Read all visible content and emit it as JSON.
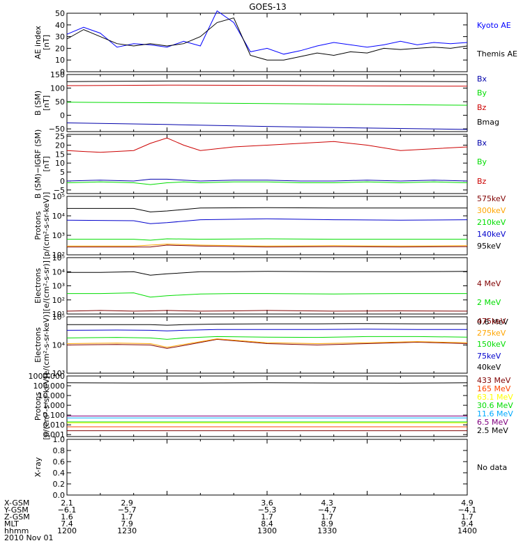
{
  "title": "GOES-13",
  "chart_data": [
    {
      "type": "line",
      "ylabel": "AE index [nT]",
      "ylim": [
        0,
        50
      ],
      "ticks": [
        0,
        10,
        20,
        30,
        40,
        50
      ],
      "tick_labels": [
        "0",
        "10",
        "20",
        "30",
        "40",
        "50"
      ],
      "x": [
        1200,
        1205,
        1210,
        1215,
        1220,
        1225,
        1230,
        1235,
        1240,
        1245,
        1250,
        1255,
        1300,
        1305,
        1310,
        1315,
        1320,
        1325,
        1330,
        1335,
        1340,
        1345,
        1350,
        1355,
        1400
      ],
      "series": [
        {
          "name": "Kyoto AE",
          "color": "#0000ff",
          "values": [
            32,
            38,
            33,
            21,
            24,
            23,
            21,
            26,
            22,
            52,
            42,
            17,
            20,
            15,
            18,
            22,
            25,
            23,
            21,
            23,
            26,
            23,
            25,
            24,
            25
          ]
        },
        {
          "name": "Themis AE",
          "color": "#000000",
          "values": [
            28,
            36,
            30,
            24,
            22,
            24,
            22,
            24,
            30,
            42,
            46,
            14,
            10,
            10,
            13,
            16,
            14,
            17,
            16,
            20,
            19,
            20,
            21,
            20,
            22
          ]
        }
      ]
    },
    {
      "type": "line",
      "ylabel": "B (SM) [nT]",
      "ylim": [
        -60,
        150
      ],
      "ticks": [
        -50,
        0,
        50,
        100,
        150
      ],
      "tick_labels": [
        "−50",
        "0",
        "50",
        "100",
        "150"
      ],
      "x": [
        1200,
        1230,
        1300,
        1330,
        1400
      ],
      "series": [
        {
          "name": "Bx",
          "color": "#0000aa",
          "values": [
            -28,
            -34,
            -41,
            -47,
            -52
          ]
        },
        {
          "name": "By",
          "color": "#00dd00",
          "values": [
            48,
            46,
            43,
            40,
            37
          ]
        },
        {
          "name": "Bz",
          "color": "#cc0000",
          "values": [
            109,
            111,
            110,
            108,
            107
          ]
        },
        {
          "name": "Bmag",
          "color": "#000000",
          "values": [
            124,
            126,
            126,
            125,
            124
          ]
        }
      ]
    },
    {
      "type": "line",
      "ylabel": "B (SM)−IGRF (SM) [nT]",
      "ylim": [
        -7,
        26
      ],
      "ticks": [
        -5,
        0,
        5,
        10,
        15,
        20,
        25
      ],
      "tick_labels": [
        "−5",
        "0",
        "5",
        "10",
        "15",
        "20",
        "25"
      ],
      "x": [
        1200,
        1210,
        1220,
        1225,
        1230,
        1235,
        1240,
        1250,
        1300,
        1310,
        1320,
        1330,
        1340,
        1350,
        1400
      ],
      "series": [
        {
          "name": "Bx",
          "color": "#0000aa",
          "values": [
            0,
            0.5,
            0,
            1,
            1,
            0.5,
            0,
            0.5,
            0.5,
            0,
            0,
            0.5,
            0,
            0.5,
            0
          ]
        },
        {
          "name": "By",
          "color": "#00dd00",
          "values": [
            -1,
            -0.5,
            -1,
            -2,
            -1,
            -0.5,
            -1,
            -0.5,
            -0.5,
            -1,
            -1,
            -0.5,
            -1,
            -0.5,
            -1
          ]
        },
        {
          "name": "Bz",
          "color": "#cc0000",
          "values": [
            17,
            16,
            17,
            21,
            24,
            20,
            17,
            19,
            20,
            21,
            22,
            20,
            17,
            18,
            19
          ]
        }
      ]
    },
    {
      "type": "line",
      "ylabel": "Protons [p/(cm²-s-sr-keV)]",
      "yscale": "log",
      "ylim_log10": [
        2,
        5
      ],
      "ticks": [
        2,
        3,
        4,
        5
      ],
      "tick_labels": [
        "10²",
        "10³",
        "10⁴",
        "10⁵"
      ],
      "x": [
        1200,
        1220,
        1225,
        1230,
        1240,
        1300,
        1320,
        1340,
        1400
      ],
      "series": [
        {
          "name": "575keV",
          "color": "#800000",
          "values": [
            2.4,
            2.4,
            2.4,
            2.5,
            2.45,
            2.4,
            2.42,
            2.4,
            2.42
          ]
        },
        {
          "name": "300keV",
          "color": "#ffa500",
          "values": [
            2.45,
            2.45,
            2.5,
            2.55,
            2.5,
            2.45,
            2.47,
            2.45,
            2.47
          ]
        },
        {
          "name": "210keV",
          "color": "#00dd00",
          "values": [
            2.8,
            2.8,
            2.75,
            2.82,
            2.8,
            2.82,
            2.8,
            2.8,
            2.8
          ]
        },
        {
          "name": "140keV",
          "color": "#0000cc",
          "values": [
            3.78,
            3.75,
            3.6,
            3.65,
            3.8,
            3.85,
            3.8,
            3.78,
            3.8
          ]
        },
        {
          "name": "95keV",
          "color": "#000000",
          "values": [
            4.38,
            4.38,
            4.2,
            4.25,
            4.4,
            4.42,
            4.4,
            4.4,
            4.4
          ]
        }
      ]
    },
    {
      "type": "line",
      "ylabel": "Electrons [e/(cm²-s-sr)]",
      "yscale": "log",
      "ylim_log10": [
        1,
        5
      ],
      "ticks": [
        1,
        2,
        3,
        4,
        5
      ],
      "tick_labels": [
        "10¹",
        "10²",
        "10³",
        "10⁴",
        "10⁵"
      ],
      "x": [
        1200,
        1210,
        1220,
        1225,
        1230,
        1240,
        1250,
        1300,
        1320,
        1340,
        1400
      ],
      "series": [
        {
          "name": "4 MeV",
          "color": "#800000",
          "values": [
            1.2,
            1.25,
            1.2,
            1.22,
            1.25,
            1.2,
            1.22,
            1.25,
            1.2,
            1.22,
            1.2
          ]
        },
        {
          "name": "2 MeV",
          "color": "#00dd00",
          "values": [
            2.45,
            2.45,
            2.5,
            2.2,
            2.3,
            2.42,
            2.45,
            2.45,
            2.42,
            2.45,
            2.45
          ]
        },
        {
          "name": "0.6 MeV",
          "color": "#000000",
          "values": [
            3.95,
            3.95,
            4.0,
            3.75,
            3.85,
            4.0,
            4.0,
            4.02,
            4.0,
            4.0,
            4.02
          ]
        }
      ]
    },
    {
      "type": "line",
      "ylabel": "Electrons [e/(cm²-s-sr-keV)]",
      "yscale": "log",
      "ylim_log10": [
        3,
        5
      ],
      "ticks": [
        3,
        4,
        5
      ],
      "tick_labels": [
        "10³",
        "10⁴",
        "10⁵"
      ],
      "x": [
        1200,
        1215,
        1225,
        1230,
        1235,
        1245,
        1300,
        1315,
        1330,
        1345,
        1400
      ],
      "series": [
        {
          "name": "475keV",
          "color": "#800000",
          "values": [
            4.0,
            4.02,
            4.0,
            3.88,
            3.98,
            4.2,
            4.05,
            4.0,
            4.05,
            4.1,
            4.05
          ]
        },
        {
          "name": "275keV",
          "color": "#ffa500",
          "values": [
            4.05,
            4.07,
            4.05,
            3.92,
            4.02,
            4.22,
            4.08,
            4.05,
            4.08,
            4.12,
            4.08
          ]
        },
        {
          "name": "150keV",
          "color": "#00dd00",
          "values": [
            4.25,
            4.27,
            4.25,
            4.2,
            4.25,
            4.3,
            4.28,
            4.27,
            4.3,
            4.3,
            4.28
          ]
        },
        {
          "name": "75keV",
          "color": "#0000cc",
          "values": [
            4.52,
            4.53,
            4.52,
            4.5,
            4.52,
            4.55,
            4.55,
            4.55,
            4.56,
            4.55,
            4.55
          ]
        },
        {
          "name": "40keV",
          "color": "#000000",
          "values": [
            4.72,
            4.72,
            4.72,
            4.7,
            4.72,
            4.74,
            4.75,
            4.75,
            4.76,
            4.75,
            4.75
          ]
        }
      ]
    },
    {
      "type": "line",
      "ylabel": "Protons [p/(cm²-s-sr-keV)]",
      "yscale": "log",
      "ylim_log10": [
        -3.2,
        3
      ],
      "ticks": [
        -3,
        -2,
        -1,
        0,
        1,
        2,
        3
      ],
      "tick_labels": [
        "0.001",
        "0.010",
        "0.100",
        "1.000",
        "10.000",
        "100.000",
        "1000.000"
      ],
      "x": [
        1200,
        1220,
        1240,
        1300,
        1320,
        1340,
        1400
      ],
      "series": [
        {
          "name": "433 MeV",
          "color": "#800000",
          "values": [
            -2.6,
            -2.6,
            -2.6,
            -2.6,
            -2.6,
            -2.6,
            -2.6
          ]
        },
        {
          "name": "165 MeV",
          "color": "#ff4500",
          "values": [
            -2.2,
            -2.2,
            -2.2,
            -2.2,
            -2.2,
            -2.2,
            -2.2
          ]
        },
        {
          "name": "63.1 MeV",
          "color": "#ffff00",
          "values": [
            -1.8,
            -1.8,
            -1.8,
            -1.8,
            -1.8,
            -1.8,
            -1.8
          ]
        },
        {
          "name": "30.6 MeV",
          "color": "#00dd00",
          "values": [
            -1.7,
            -1.7,
            -1.7,
            -1.7,
            -1.7,
            -1.7,
            -1.7
          ]
        },
        {
          "name": "11.6 MeV",
          "color": "#00aaff",
          "values": [
            -1.3,
            -1.3,
            -1.3,
            -1.3,
            -1.3,
            -1.3,
            -1.3
          ]
        },
        {
          "name": "6.5 MeV",
          "color": "#800080",
          "values": [
            -1.1,
            -1.1,
            -1.1,
            -1.1,
            -1.1,
            -1.1,
            -1.1
          ]
        },
        {
          "name": "2.5 MeV",
          "color": "#000000",
          "values": [
            2.3,
            2.28,
            2.28,
            2.3,
            2.28,
            2.27,
            2.3
          ]
        }
      ]
    },
    {
      "type": "line",
      "ylabel": "X-ray",
      "ylim": [
        0,
        1
      ],
      "ticks": [
        0,
        0.2,
        0.4,
        0.6,
        0.8,
        1.0
      ],
      "tick_labels": [
        "0.0",
        "0.2",
        "0.4",
        "0.6",
        "0.8",
        "1.0"
      ],
      "x": [],
      "series": [],
      "note": "No data"
    }
  ],
  "x_axis": {
    "ticks": [
      "1200",
      "1230",
      "1300",
      "1330",
      "1400"
    ],
    "rows": [
      {
        "label": "X-GSM",
        "values": [
          "2.1",
          "2.9",
          "3.6",
          "4.3",
          "4.9"
        ]
      },
      {
        "label": "Y-GSM",
        "values": [
          "−6.1",
          "−5.7",
          "−5.3",
          "−4.7",
          "−4.1"
        ]
      },
      {
        "label": "Z-GSM",
        "values": [
          "1.6",
          "1.7",
          "1.7",
          "1.7",
          "1.7"
        ]
      },
      {
        "label": "MLT",
        "values": [
          "7.4",
          "7.9",
          "8.4",
          "8.9",
          "9.4"
        ]
      },
      {
        "label": "hhmm",
        "values": [
          "1200",
          "1230",
          "1300",
          "1330",
          "1400"
        ]
      }
    ],
    "date": "2010 Nov 01"
  }
}
